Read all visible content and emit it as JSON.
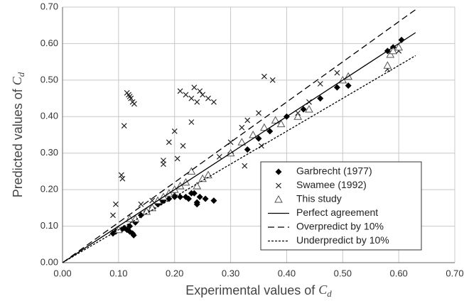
{
  "chart_data": {
    "type": "scatter",
    "x_label": "Experimental values of ",
    "x_label_symbol": "C",
    "x_label_subscript": "d",
    "y_label": "Predicted values of ",
    "y_label_symbol": "C",
    "y_label_subscript": "d",
    "xlim": [
      0,
      0.7
    ],
    "ylim": [
      0,
      0.7
    ],
    "xticks": [
      {
        "value": 0,
        "label": "0.00"
      },
      {
        "value": 0.1,
        "label": "0.10"
      },
      {
        "value": 0.2,
        "label": "0.20"
      },
      {
        "value": 0.3,
        "label": "0.30"
      },
      {
        "value": 0.4,
        "label": "0.40"
      },
      {
        "value": 0.5,
        "label": "0.50"
      },
      {
        "value": 0.6,
        "label": "0.60"
      },
      {
        "value": 0.7,
        "label": "0.70"
      }
    ],
    "yticks": [
      {
        "value": 0,
        "label": "0.00"
      },
      {
        "value": 0.1,
        "label": "0.10"
      },
      {
        "value": 0.2,
        "label": "0.20"
      },
      {
        "value": 0.3,
        "label": "0.30"
      },
      {
        "value": 0.4,
        "label": "0.40"
      },
      {
        "value": 0.5,
        "label": "0.50"
      },
      {
        "value": 0.6,
        "label": "0.60"
      },
      {
        "value": 0.7,
        "label": "0.70"
      }
    ],
    "grid": true,
    "legend": "lower right",
    "series": [
      {
        "name": "Garbrecht (1977)",
        "color": "#000000",
        "marker": "diamond",
        "x": [
          0.09,
          0.095,
          0.1,
          0.105,
          0.11,
          0.115,
          0.12,
          0.125,
          0.127,
          0.12,
          0.13,
          0.14,
          0.15,
          0.16,
          0.17,
          0.175,
          0.18,
          0.19,
          0.2,
          0.21,
          0.22,
          0.23,
          0.235,
          0.225,
          0.24,
          0.245,
          0.255,
          0.27,
          0.24,
          0.3,
          0.33,
          0.35,
          0.37,
          0.4,
          0.43,
          0.46,
          0.49,
          0.51,
          0.58,
          0.59,
          0.605
        ],
        "values": [
          0.08,
          0.085,
          0.09,
          0.09,
          0.095,
          0.09,
          0.085,
          0.08,
          0.075,
          0.1,
          0.11,
          0.13,
          0.14,
          0.15,
          0.16,
          0.165,
          0.17,
          0.175,
          0.18,
          0.18,
          0.18,
          0.19,
          0.19,
          0.175,
          0.165,
          0.18,
          0.175,
          0.17,
          0.16,
          0.3,
          0.31,
          0.34,
          0.36,
          0.4,
          0.42,
          0.45,
          0.48,
          0.485,
          0.58,
          0.59,
          0.61
        ]
      },
      {
        "name": "Swamee (1992)",
        "color": "#222222",
        "marker": "x",
        "x": [
          0.09,
          0.095,
          0.105,
          0.107,
          0.11,
          0.115,
          0.118,
          0.12,
          0.122,
          0.125,
          0.128,
          0.14,
          0.16,
          0.18,
          0.18,
          0.19,
          0.2,
          0.205,
          0.21,
          0.215,
          0.22,
          0.23,
          0.23,
          0.235,
          0.24,
          0.245,
          0.25,
          0.26,
          0.27,
          0.3,
          0.32,
          0.325,
          0.33,
          0.35,
          0.355,
          0.36,
          0.375,
          0.42,
          0.44,
          0.46,
          0.49,
          0.58,
          0.6,
          0.2,
          0.28
        ],
        "values": [
          0.13,
          0.16,
          0.24,
          0.23,
          0.375,
          0.465,
          0.46,
          0.455,
          0.45,
          0.44,
          0.435,
          0.16,
          0.17,
          0.27,
          0.28,
          0.33,
          0.36,
          0.285,
          0.47,
          0.32,
          0.46,
          0.385,
          0.45,
          0.48,
          0.44,
          0.47,
          0.46,
          0.45,
          0.44,
          0.33,
          0.37,
          0.265,
          0.39,
          0.41,
          0.32,
          0.51,
          0.5,
          0.41,
          0.44,
          0.49,
          0.52,
          0.53,
          0.58,
          0.19,
          0.29
        ]
      },
      {
        "name": "This study",
        "color": "#555555",
        "marker": "triangle",
        "x": [
          0.1,
          0.12,
          0.13,
          0.15,
          0.16,
          0.17,
          0.18,
          0.19,
          0.2,
          0.21,
          0.22,
          0.23,
          0.24,
          0.25,
          0.26,
          0.3,
          0.32,
          0.34,
          0.36,
          0.38,
          0.39,
          0.42,
          0.44,
          0.5,
          0.51,
          0.58,
          0.585,
          0.6,
          0.59
        ],
        "values": [
          0.09,
          0.12,
          0.12,
          0.14,
          0.15,
          0.17,
          0.18,
          0.19,
          0.2,
          0.21,
          0.22,
          0.25,
          0.21,
          0.23,
          0.24,
          0.3,
          0.33,
          0.35,
          0.37,
          0.39,
          0.38,
          0.4,
          0.42,
          0.5,
          0.51,
          0.54,
          0.57,
          0.59,
          0.58
        ]
      },
      {
        "name": "Perfect agreement",
        "color": "#000000",
        "marker": "none",
        "dash": "solid",
        "x": [
          0,
          0.63
        ],
        "values": [
          0,
          0.63
        ]
      },
      {
        "name": "Overpredict by 10%",
        "color": "#000000",
        "marker": "none",
        "dash": "dashed",
        "x": [
          0,
          0.63
        ],
        "values": [
          0,
          0.693
        ]
      },
      {
        "name": "Underpredict by 10%",
        "color": "#000000",
        "marker": "none",
        "dash": "dotted",
        "x": [
          0,
          0.63
        ],
        "values": [
          0,
          0.567
        ]
      }
    ]
  }
}
